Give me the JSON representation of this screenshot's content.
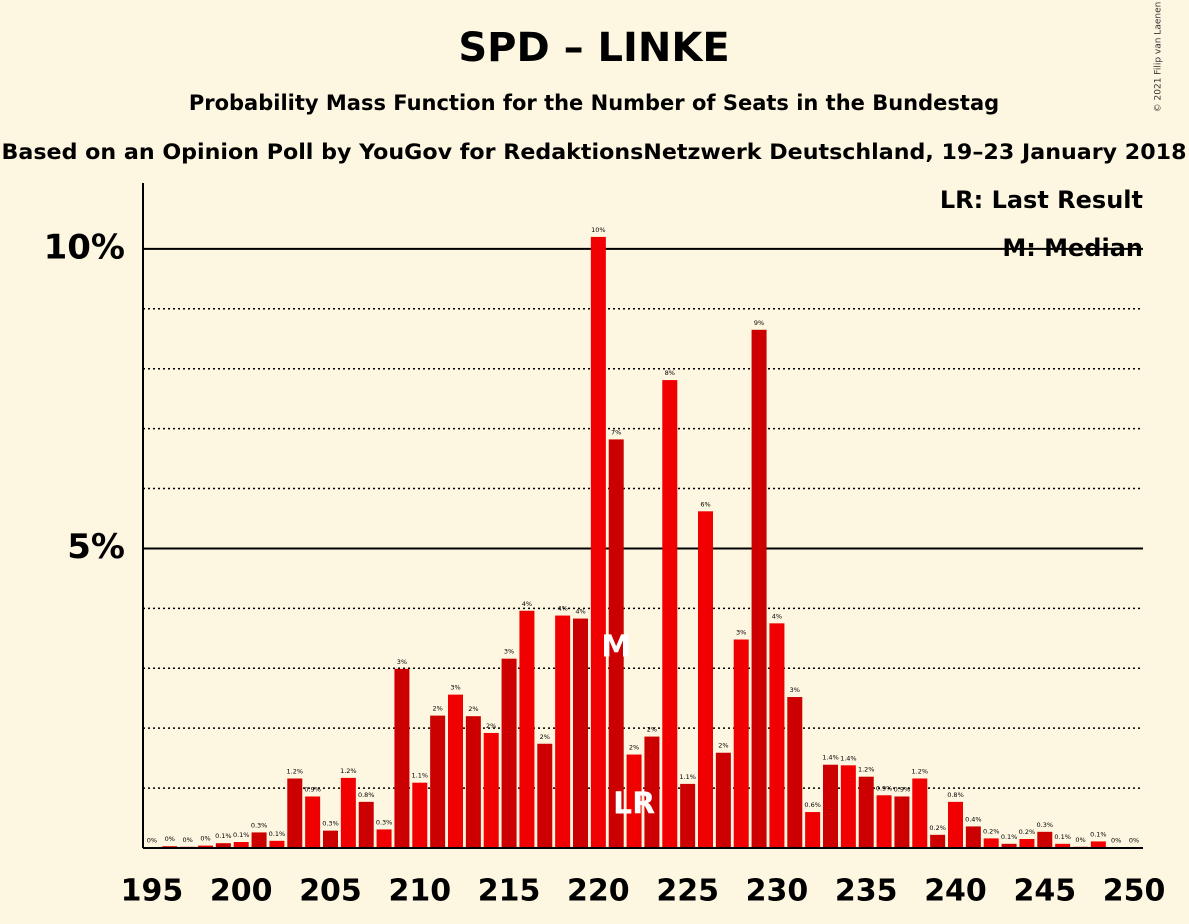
{
  "chart_data": {
    "type": "bar",
    "title": "SPD – LINKE",
    "subtitle": "Probability Mass Function for the Number of Seats in the Bundestag",
    "subtitle2": "Based on an Opinion Poll by YouGov for RedaktionsNetzwerk Deutschland, 19–23 January 2018",
    "copyright": "© 2021 Filip van Laenen",
    "x": [
      195,
      196,
      197,
      198,
      199,
      200,
      201,
      202,
      203,
      204,
      205,
      206,
      207,
      208,
      209,
      210,
      211,
      212,
      213,
      214,
      215,
      216,
      217,
      218,
      219,
      220,
      221,
      222,
      223,
      224,
      225,
      226,
      227,
      228,
      229,
      230,
      231,
      232,
      233,
      234,
      235,
      236,
      237,
      238,
      239,
      240,
      241,
      242,
      243,
      244,
      245,
      246,
      247,
      248,
      249,
      250
    ],
    "values": [
      0.01,
      0.03,
      0.02,
      0.04,
      0.08,
      0.1,
      0.26,
      0.12,
      1.16,
      0.86,
      0.29,
      1.17,
      0.77,
      0.31,
      2.99,
      1.09,
      2.21,
      2.56,
      2.2,
      1.92,
      3.16,
      3.96,
      1.74,
      3.88,
      3.83,
      10.2,
      6.82,
      1.56,
      1.86,
      7.81,
      1.07,
      5.62,
      1.59,
      3.48,
      8.65,
      3.75,
      2.52,
      0.6,
      1.39,
      1.38,
      1.19,
      0.88,
      0.86,
      1.16,
      0.22,
      0.77,
      0.36,
      0.16,
      0.07,
      0.15,
      0.27,
      0.07,
      0.02,
      0.11,
      0.01,
      0.01
    ],
    "value_labels": [
      "0%",
      "0%",
      "0%",
      "0%",
      "0.1%",
      "0.1%",
      "0.3%",
      "0.1%",
      "1.2%",
      "0.9%",
      "0.3%",
      "1.2%",
      "0.8%",
      "0.3%",
      "3%",
      "1.1%",
      "2%",
      "3%",
      "2%",
      "2%",
      "3%",
      "4%",
      "2%",
      "4%",
      "4%",
      "10%",
      "7%",
      "2%",
      "2%",
      "8%",
      "1.1%",
      "6%",
      "2%",
      "3%",
      "9%",
      "4%",
      "3%",
      "0.6%",
      "1.4%",
      "1.4%",
      "1.2%",
      "0.9%",
      "0.9%",
      "1.2%",
      "0.2%",
      "0.8%",
      "0.4%",
      "0.2%",
      "0.1%",
      "0.2%",
      "0.3%",
      "0.1%",
      "0%",
      "0.1%",
      "0%",
      "0%"
    ],
    "color": "#f00000",
    "alt_color": "#cc0000",
    "xlim": [
      194.5,
      250.5
    ],
    "xticks": [
      195,
      200,
      205,
      210,
      215,
      220,
      225,
      230,
      235,
      240,
      245,
      250
    ],
    "ylim": [
      0,
      11.1
    ],
    "yticks": [
      {
        "value": 5,
        "label": "5%"
      },
      {
        "value": 10,
        "label": "10%"
      }
    ],
    "minor_yticks": [
      1,
      2,
      3,
      4,
      6,
      7,
      8,
      9
    ],
    "annotations": [
      {
        "text": "M",
        "x": 221
      },
      {
        "text": "LR",
        "x": 222
      }
    ],
    "legend": [
      "LR: Last Result",
      "M: Median"
    ]
  }
}
